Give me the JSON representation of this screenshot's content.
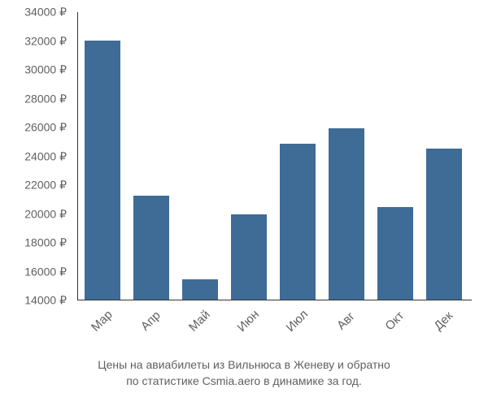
{
  "chart": {
    "type": "bar",
    "ylim": [
      14000,
      34000
    ],
    "ytick_step": 2000,
    "yticks": [
      14000,
      16000,
      18000,
      20000,
      22000,
      24000,
      26000,
      28000,
      30000,
      32000,
      34000
    ],
    "currency_suffix": " ₽",
    "categories": [
      "Мар",
      "Апр",
      "Май",
      "Июн",
      "Июл",
      "Авг",
      "Окт",
      "Дек"
    ],
    "values": [
      32000,
      21200,
      15400,
      19900,
      24800,
      25900,
      20400,
      24500
    ],
    "bar_color": "#3e6c97",
    "axis_color": "#333333",
    "text_color": "#606060",
    "background_color": "#ffffff",
    "label_fontsize": 14,
    "caption_line1": "Цены на авиабилеты из Вильнюса в Женеву и обратно",
    "caption_line2": "по статистике Csmia.aero в динамике за год."
  }
}
